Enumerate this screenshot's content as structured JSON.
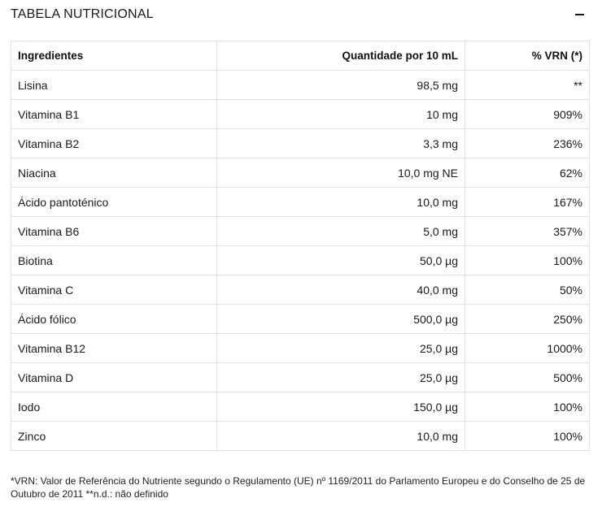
{
  "header": {
    "title": "TABELA NUTRICIONAL",
    "collapse_icon": "minus-icon"
  },
  "table": {
    "columns": [
      "Ingredientes",
      "Quantidade por 10 mL",
      "% VRN (*)"
    ],
    "rows": [
      [
        "Lisina",
        "98,5 mg",
        "**"
      ],
      [
        "Vitamina B1",
        "10 mg",
        "909%"
      ],
      [
        "Vitamina B2",
        "3,3 mg",
        "236%"
      ],
      [
        "Niacina",
        "10,0 mg NE",
        "62%"
      ],
      [
        "Ácido pantoténico",
        "10,0 mg",
        "167%"
      ],
      [
        "Vitamina B6",
        "5,0 mg",
        "357%"
      ],
      [
        "Biotina",
        "50,0 µg",
        "100%"
      ],
      [
        "Vitamina C",
        "40,0 mg",
        "50%"
      ],
      [
        "Ácido fólico",
        "500,0 µg",
        "250%"
      ],
      [
        "Vitamina B12",
        "25,0 µg",
        "1000%"
      ],
      [
        "Vitamina D",
        "25,0 µg",
        "500%"
      ],
      [
        "Iodo",
        "150,0 µg",
        "100%"
      ],
      [
        "Zinco",
        "10,0 mg",
        "100%"
      ]
    ]
  },
  "footnote": "*VRN: Valor de Referência do Nutriente segundo o Regulamento (UE) nº 1169/2011 do Parlamento Europeu e do Conselho de 25 de Outubro de 2011 **n.d.: não definido"
}
